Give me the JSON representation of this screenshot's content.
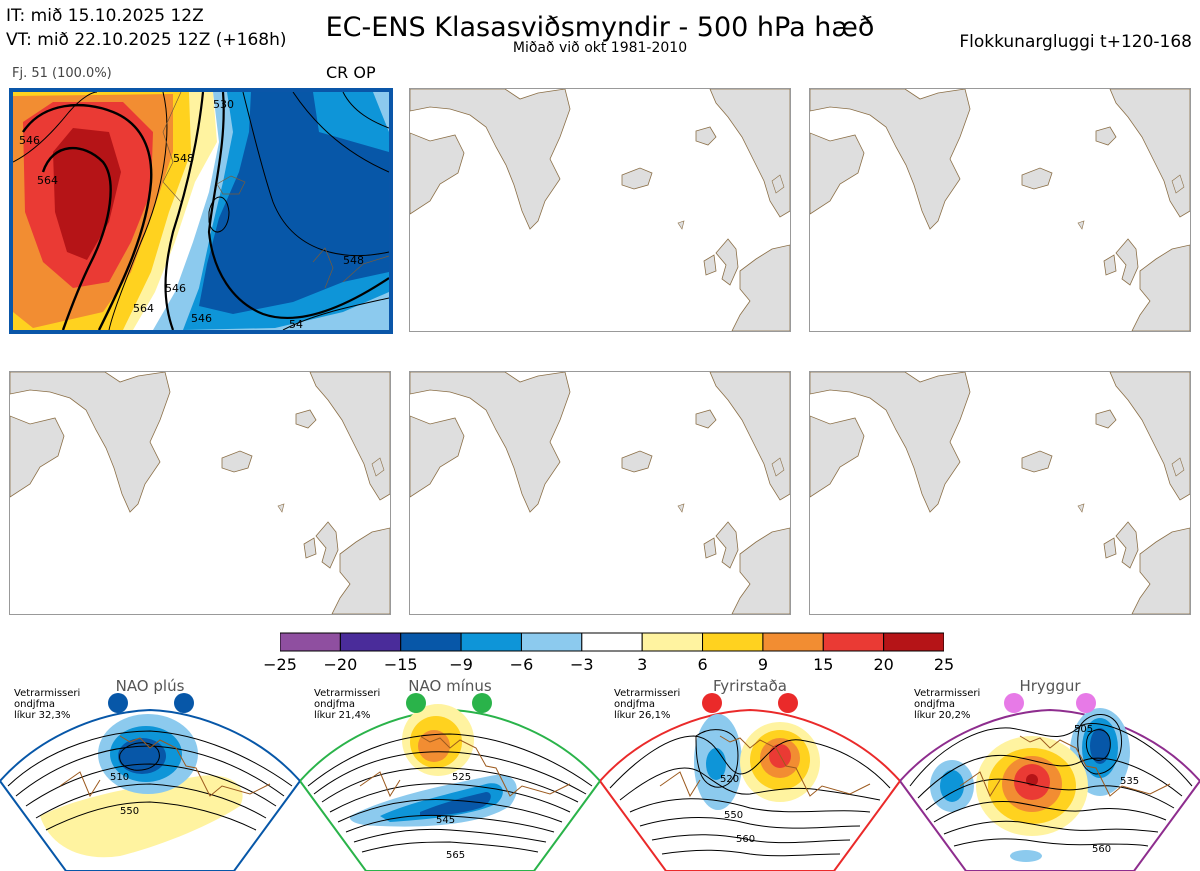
{
  "header": {
    "it_line": "IT: mið 15.10.2025 12Z",
    "vt_line": "VT: mið 22.10.2025 12Z  (+168h)",
    "title": "EC-ENS Klasasviðsmyndir - 500 hPa hæð",
    "subtitle": "Miðað við okt 1981-2010",
    "window": "Flokkunargluggi t+120-168"
  },
  "cluster": {
    "members": "Fj. 51 (100.0%)",
    "label": "CR OP",
    "contour_labels": [
      "546",
      "564",
      "548",
      "530",
      "546",
      "548",
      "546",
      "564",
      "54"
    ]
  },
  "colorbar": {
    "ticks": [
      "−25",
      "−20",
      "−15",
      "−9",
      "−6",
      "−3",
      "3",
      "6",
      "9",
      "15",
      "20",
      "25"
    ],
    "colors": [
      "#8f4fa0",
      "#4a2c9a",
      "#0757a8",
      "#0e95d8",
      "#8ccaee",
      "#ffffff",
      "#fff3a0",
      "#ffd21f",
      "#f28d32",
      "#ea3a34",
      "#b51417"
    ]
  },
  "regimes": [
    {
      "name": "NAO plús",
      "note": [
        "Vetrarmisseri",
        "ondjfma",
        "líkur 32,3%"
      ],
      "dot_color": "#0757a8",
      "frame_color": "#0757a8",
      "contour_labels": [
        "510",
        "550"
      ]
    },
    {
      "name": "NAO mínus",
      "note": [
        "Vetrarmisseri",
        "ondjfma",
        "líkur 21,4%"
      ],
      "dot_color": "#2ab34a",
      "frame_color": "#2ab34a",
      "contour_labels": [
        "525",
        "545",
        "565"
      ]
    },
    {
      "name": "Fyrirstaða",
      "note": [
        "Vetrarmisseri",
        "ondjfma",
        "líkur 26,1%"
      ],
      "dot_color": "#ea2a2a",
      "frame_color": "#ea2a2a",
      "contour_labels": [
        "520",
        "550",
        "560"
      ]
    },
    {
      "name": "Hryggur",
      "note": [
        "Vetrarmisseri",
        "ondjfma",
        "líkur 20,2%"
      ],
      "dot_color": "#e77ae7",
      "frame_color": "#8e2d8e",
      "contour_labels": [
        "505",
        "535",
        "560"
      ]
    }
  ]
}
